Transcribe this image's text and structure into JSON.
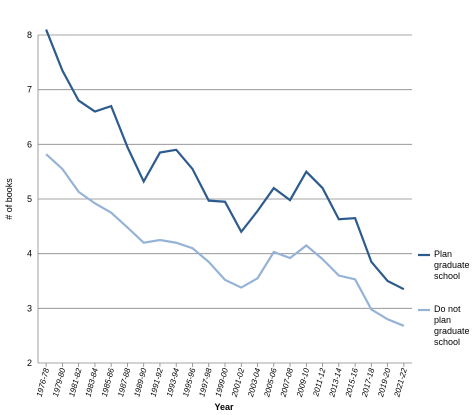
{
  "chart_data": {
    "type": "line",
    "x_label": "Year",
    "y_label": "# of books",
    "categories": [
      "1976-78",
      "1979-80",
      "1981-82",
      "1983-84",
      "1985-86",
      "1987-88",
      "1989-90",
      "1991-92",
      "1993-94",
      "1995-96",
      "1997-98",
      "1999-00",
      "2001-02",
      "2003-04",
      "2005-06",
      "2007-08",
      "2009-10",
      "2011-12",
      "2013-14",
      "2015-16",
      "2017-18",
      "2019-20",
      "2021-22"
    ],
    "series": [
      {
        "name": "Plan graduate school",
        "color": "#2e5b8e",
        "values": [
          8.1,
          7.35,
          6.8,
          6.6,
          6.7,
          5.95,
          5.32,
          5.85,
          5.9,
          5.55,
          4.97,
          4.95,
          4.4,
          4.78,
          5.2,
          4.98,
          5.5,
          5.2,
          4.63,
          4.65,
          3.85,
          3.5,
          3.35
        ]
      },
      {
        "name": "Do not plan graduate school",
        "color": "#95b3d7",
        "values": [
          5.82,
          5.55,
          5.13,
          4.92,
          4.75,
          4.48,
          4.2,
          4.25,
          4.2,
          4.1,
          3.85,
          3.52,
          3.38,
          3.55,
          4.03,
          3.92,
          4.15,
          3.9,
          3.6,
          3.53,
          2.98,
          2.8,
          2.68
        ]
      }
    ],
    "ylim": [
      2,
      8
    ],
    "yticks": [
      2,
      3,
      4,
      5,
      6,
      7,
      8
    ],
    "grid": true
  }
}
